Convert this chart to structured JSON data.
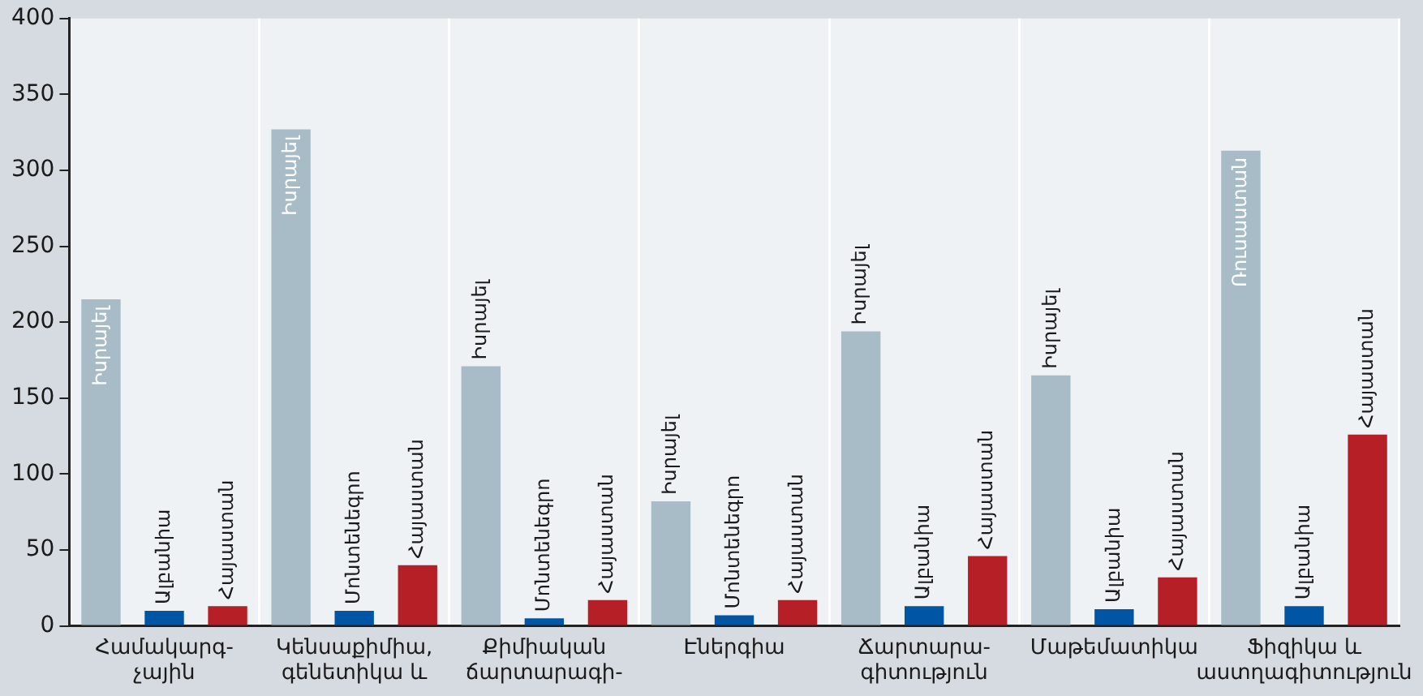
{
  "chart_data": {
    "type": "bar",
    "categories": [
      "Համակարգ-\nչային",
      "Կենսաքիմիա,\nգենետիկա և",
      "Քիմիական\nճարտարագի-",
      "Էներգիա",
      "Ճարտարա-\nգիտություն",
      "Մաթեմատիկա",
      "Ֆիզիկա և\nաստղագիտություն"
    ],
    "series": [
      {
        "color": "#a7bcc7",
        "values": [
          215,
          327,
          171,
          82,
          194,
          165,
          313
        ],
        "value_labels": [
          "Իսրայել",
          "Իսրայել",
          "Իսրայել",
          "Իսրայել",
          "Իսրայել",
          "Իսրայել",
          "Ռուսաստան"
        ]
      },
      {
        "color": "#0055a5",
        "values": [
          10,
          10,
          5,
          7,
          13,
          11,
          13
        ],
        "value_labels": [
          "Ալբանիա",
          "Մոնտենեգրո",
          "Մոնտենեգրո",
          "Մոնտենեգրո",
          "Ալբանիա",
          "Ալբանիա",
          "Ալբանիա"
        ]
      },
      {
        "color": "#b71f27",
        "values": [
          13,
          40,
          17,
          17,
          46,
          32,
          126
        ],
        "value_labels": [
          "Հայաստան",
          "Հայաստան",
          "Հայաստան",
          "Հայաստան",
          "Հայաստան",
          "Հայաստան",
          "Հայաստան"
        ]
      }
    ],
    "ylim": [
      0,
      400
    ],
    "yticks": [
      0,
      50,
      100,
      150,
      200,
      250,
      300,
      350,
      400
    ],
    "grid": "x",
    "legend": false
  }
}
